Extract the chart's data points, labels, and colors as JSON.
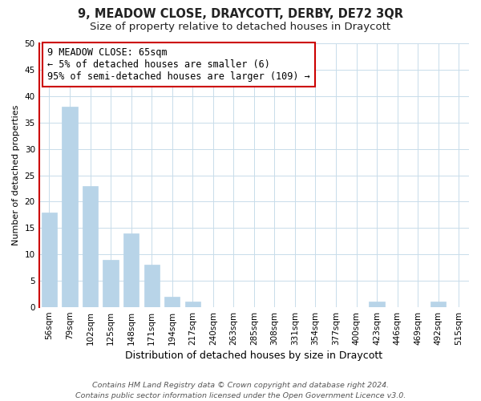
{
  "title": "9, MEADOW CLOSE, DRAYCOTT, DERBY, DE72 3QR",
  "subtitle": "Size of property relative to detached houses in Draycott",
  "xlabel": "Distribution of detached houses by size in Draycott",
  "ylabel": "Number of detached properties",
  "bar_labels": [
    "56sqm",
    "79sqm",
    "102sqm",
    "125sqm",
    "148sqm",
    "171sqm",
    "194sqm",
    "217sqm",
    "240sqm",
    "263sqm",
    "285sqm",
    "308sqm",
    "331sqm",
    "354sqm",
    "377sqm",
    "400sqm",
    "423sqm",
    "446sqm",
    "469sqm",
    "492sqm",
    "515sqm"
  ],
  "bar_values": [
    18,
    38,
    23,
    9,
    14,
    8,
    2,
    1,
    0,
    0,
    0,
    0,
    0,
    0,
    0,
    0,
    1,
    0,
    0,
    1,
    0
  ],
  "bar_color": "#b8d4e8",
  "highlight_color": "#cc0000",
  "ylim": [
    0,
    50
  ],
  "yticks": [
    0,
    5,
    10,
    15,
    20,
    25,
    30,
    35,
    40,
    45,
    50
  ],
  "annotation_line1": "9 MEADOW CLOSE: 65sqm",
  "annotation_line2": "← 5% of detached houses are smaller (6)",
  "annotation_line3": "95% of semi-detached houses are larger (109) →",
  "footer_line1": "Contains HM Land Registry data © Crown copyright and database right 2024.",
  "footer_line2": "Contains public sector information licensed under the Open Government Licence v3.0.",
  "bg_color": "#ffffff",
  "grid_color": "#c8dcea",
  "title_fontsize": 10.5,
  "subtitle_fontsize": 9.5,
  "xlabel_fontsize": 9,
  "ylabel_fontsize": 8,
  "tick_fontsize": 7.5,
  "annot_fontsize": 8.5,
  "footer_fontsize": 6.8
}
